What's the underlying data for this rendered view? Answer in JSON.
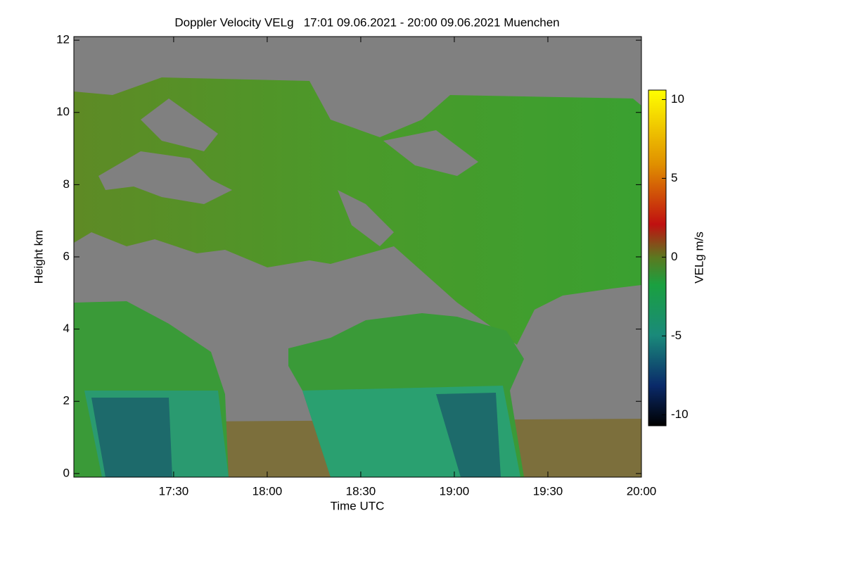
{
  "chart_data": {
    "type": "heatmap",
    "title": "Doppler Velocity VELg   17:01 09.06.2021 - 20:00 09.06.2021 Muenchen",
    "x_label": "Time UTC",
    "y_label": "Height km",
    "xlim": [
      1018,
      1200
    ],
    "xticks": [
      {
        "value": 1050,
        "label": "17:30"
      },
      {
        "value": 1080,
        "label": "18:00"
      },
      {
        "value": 1110,
        "label": "18:30"
      },
      {
        "value": 1140,
        "label": "19:00"
      },
      {
        "value": 1170,
        "label": "19:30"
      },
      {
        "value": 1200,
        "label": "20:00"
      }
    ],
    "ylim": [
      -0.1,
      12.1
    ],
    "yticks": [
      0,
      2,
      4,
      6,
      8,
      10,
      12
    ],
    "colorbar": {
      "label": "VELg m/s",
      "lim": [
        -10.7,
        10.6
      ],
      "ticks": [
        -10,
        -5,
        0,
        5,
        10
      ]
    }
  }
}
